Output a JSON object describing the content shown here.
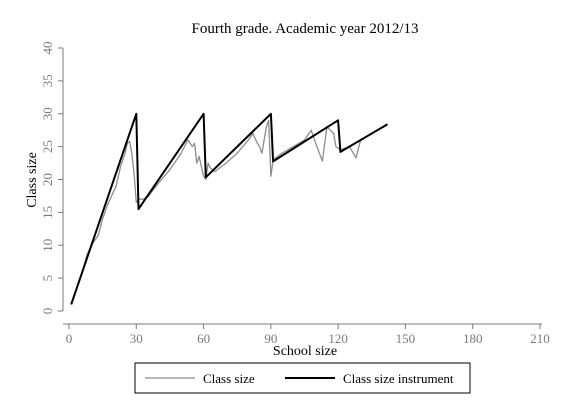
{
  "chart_data": {
    "type": "line",
    "title": "Fourth grade. Academic year 2012/13",
    "xlabel": "School size",
    "ylabel": "Class size",
    "xlim": [
      0,
      210
    ],
    "ylim": [
      0,
      40
    ],
    "x_ticks": [
      0,
      30,
      60,
      90,
      120,
      150,
      180,
      210
    ],
    "y_ticks": [
      0,
      5,
      10,
      15,
      20,
      25,
      30,
      35,
      40
    ],
    "grid": false,
    "legend_position": "bottom",
    "series": [
      {
        "name": "Class size",
        "color": "#8c8c8c",
        "points": [
          [
            1,
            1
          ],
          [
            3,
            3
          ],
          [
            6,
            6
          ],
          [
            8,
            8.5
          ],
          [
            10,
            10
          ],
          [
            12,
            11
          ],
          [
            13,
            11.5
          ],
          [
            15,
            14
          ],
          [
            17,
            16
          ],
          [
            19,
            17.5
          ],
          [
            21,
            19
          ],
          [
            23,
            22
          ],
          [
            25,
            24
          ],
          [
            26,
            25.5
          ],
          [
            27,
            25.8
          ],
          [
            28,
            24
          ],
          [
            29,
            21
          ],
          [
            30,
            16.5
          ],
          [
            31,
            17
          ],
          [
            33,
            17
          ],
          [
            35,
            17.3
          ],
          [
            40,
            19.5
          ],
          [
            45,
            21.5
          ],
          [
            50,
            24
          ],
          [
            53,
            26
          ],
          [
            54,
            25.5
          ],
          [
            55,
            25
          ],
          [
            56,
            25.5
          ],
          [
            57,
            22.5
          ],
          [
            58,
            23.5
          ],
          [
            59,
            22
          ],
          [
            60,
            20.5
          ],
          [
            61,
            20
          ],
          [
            62,
            22.5
          ],
          [
            63,
            21.8
          ],
          [
            65,
            21.2
          ],
          [
            70,
            22.5
          ],
          [
            75,
            24
          ],
          [
            80,
            26
          ],
          [
            82,
            27
          ],
          [
            83,
            26.2
          ],
          [
            84,
            25.5
          ],
          [
            85,
            25
          ],
          [
            86,
            24
          ],
          [
            88,
            28
          ],
          [
            89,
            29
          ],
          [
            90,
            20.5
          ],
          [
            91,
            23
          ],
          [
            95,
            24
          ],
          [
            100,
            25
          ],
          [
            105,
            26
          ],
          [
            108,
            27.5
          ],
          [
            110,
            25.5
          ],
          [
            113,
            22.8
          ],
          [
            115,
            28
          ],
          [
            118,
            27
          ],
          [
            119,
            25
          ],
          [
            121,
            24.5
          ],
          [
            125,
            25
          ],
          [
            128,
            23.3
          ],
          [
            130,
            26
          ]
        ]
      },
      {
        "name": "Class size instrument",
        "color": "#000000",
        "points": [
          [
            1,
            1
          ],
          [
            30,
            30
          ],
          [
            31,
            15.5
          ],
          [
            60,
            30
          ],
          [
            61,
            20.33
          ],
          [
            90,
            30
          ],
          [
            91,
            22.75
          ],
          [
            120,
            29
          ],
          [
            121,
            24.2
          ],
          [
            142,
            28.4
          ]
        ]
      }
    ]
  }
}
